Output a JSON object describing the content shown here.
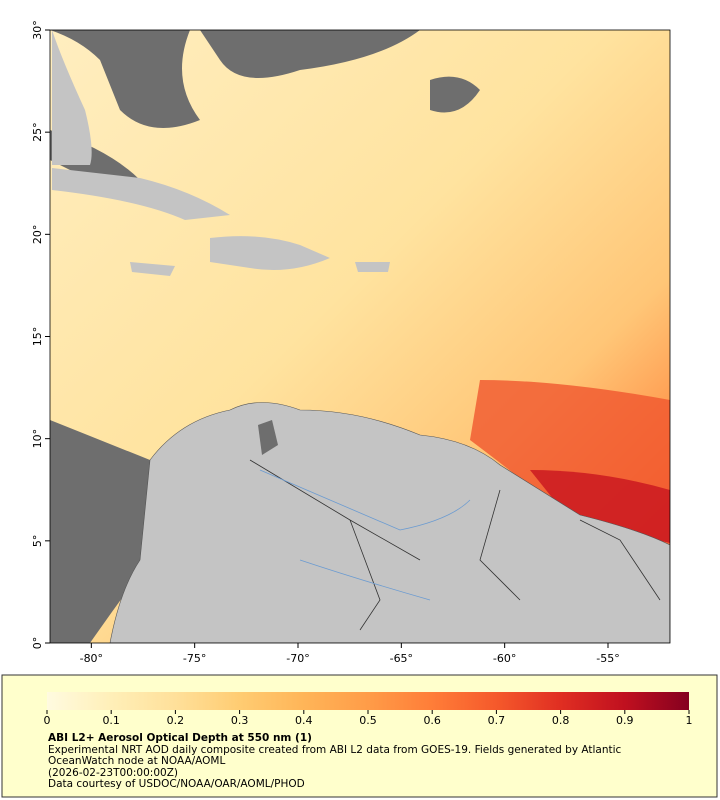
{
  "map": {
    "xlim": [
      -82,
      -52
    ],
    "ylim": [
      0,
      30
    ],
    "xticks": [
      {
        "value": -80,
        "label": "-80°"
      },
      {
        "value": -75,
        "label": "-75°"
      },
      {
        "value": -70,
        "label": "-70°"
      },
      {
        "value": -65,
        "label": "-65°"
      },
      {
        "value": -60,
        "label": "-60°"
      },
      {
        "value": -55,
        "label": "-55°"
      }
    ],
    "yticks": [
      {
        "value": 0,
        "label": "0°"
      },
      {
        "value": 5,
        "label": "5°"
      },
      {
        "value": 10,
        "label": "10°"
      },
      {
        "value": 15,
        "label": "15°"
      },
      {
        "value": 20,
        "label": "20°"
      },
      {
        "value": 25,
        "label": "25°"
      },
      {
        "value": 30,
        "label": "30°"
      }
    ]
  },
  "colorbar": {
    "lim": [
      0,
      1
    ],
    "ticks": [
      0,
      0.1,
      0.2,
      0.3,
      0.4,
      0.5,
      0.6,
      0.7,
      0.8,
      0.9,
      1
    ],
    "colors": [
      "#fffbe0",
      "#ffefb8",
      "#ffe09a",
      "#ffcc72",
      "#ffb558",
      "#ff9c48",
      "#ff7d38",
      "#f5592b",
      "#e02e22",
      "#c0101f",
      "#85001f"
    ]
  },
  "caption": {
    "title": "ABI L2+ Aerosol Optical Depth at 550 nm (1)",
    "description": "Experimental NRT AOD daily composite created from ABI L2 data from GOES-19. Fields generated by Atlantic OceanWatch node at NOAA/AOML",
    "timestamp": "(2026-02-23T00:00:00Z)",
    "credit": "Data courtesy of USDOC/NOAA/OAR/AOML/PHOD"
  }
}
